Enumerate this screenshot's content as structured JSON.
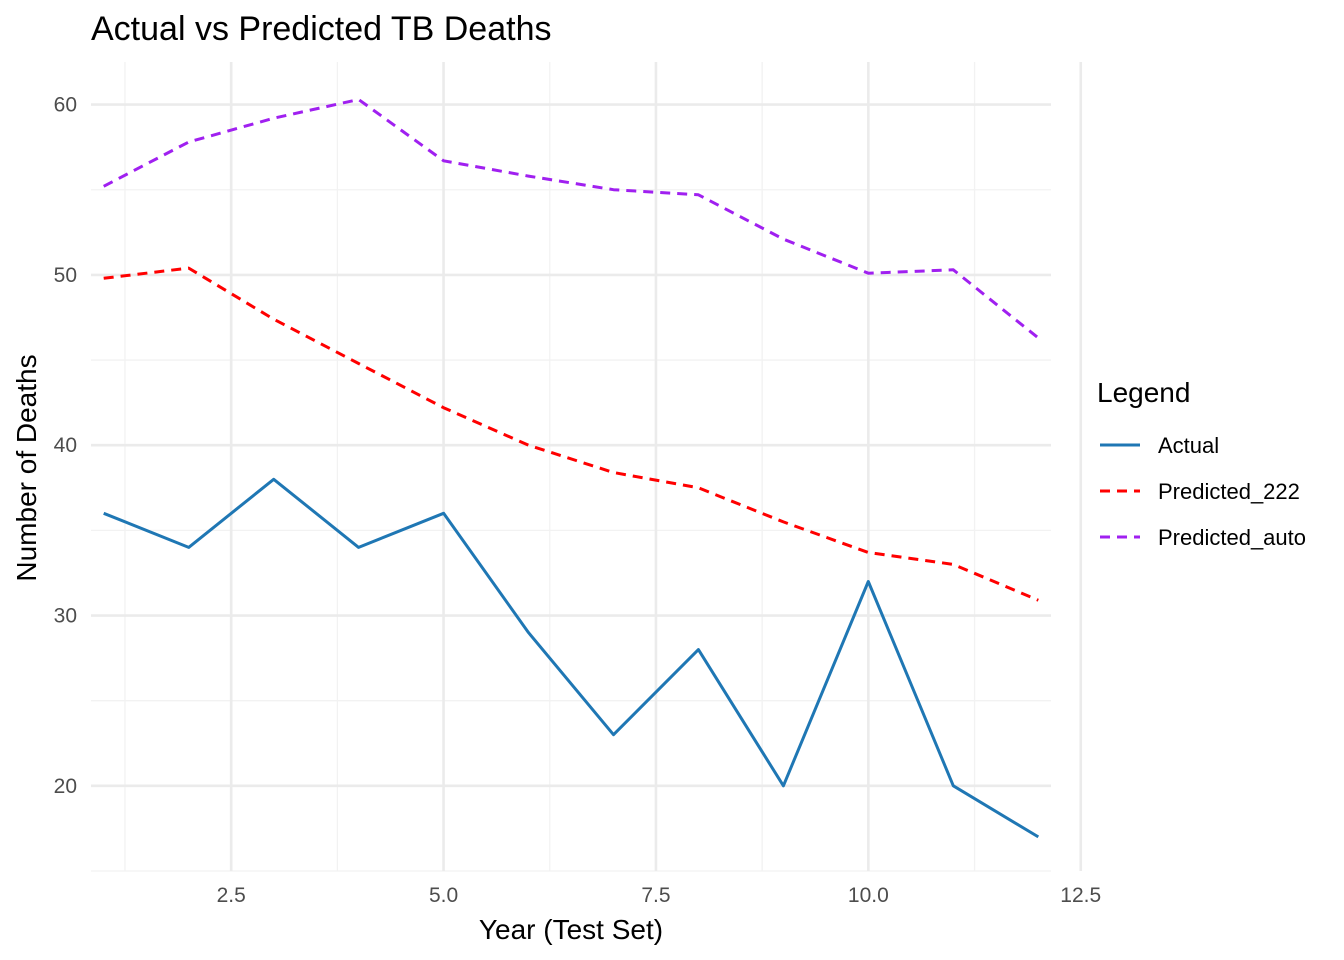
{
  "chart_data": {
    "type": "line",
    "title": "Actual vs Predicted TB Deaths",
    "xlabel": "Year (Test Set)",
    "ylabel": "Number of Deaths",
    "xlim": [
      0.85,
      12.15
    ],
    "ylim": [
      15,
      62.5
    ],
    "x_ticks": [
      2.5,
      5.0,
      7.5,
      10.0,
      12.5
    ],
    "x_tick_labels": [
      "2.5",
      "5.0",
      "7.5",
      "10.0",
      "12.5"
    ],
    "y_ticks": [
      20,
      30,
      40,
      50,
      60
    ],
    "y_tick_labels": [
      "20",
      "30",
      "40",
      "50",
      "60"
    ],
    "grid": true,
    "legend": {
      "title": "Legend",
      "position": "right"
    },
    "x": [
      1,
      2,
      3,
      4,
      5,
      6,
      7,
      8,
      9,
      10,
      11,
      12
    ],
    "series": [
      {
        "name": "Actual",
        "color": "#1f77b4",
        "dash": "solid",
        "values": [
          36,
          34,
          38,
          34,
          36,
          29,
          23,
          28,
          20,
          32,
          20,
          17
        ]
      },
      {
        "name": "Predicted_222",
        "color": "#ff0000",
        "dash": "dashed",
        "values": [
          49.8,
          50.4,
          47.4,
          44.8,
          42.2,
          40.0,
          38.4,
          37.5,
          35.5,
          33.7,
          33.0,
          30.9
        ]
      },
      {
        "name": "Predicted_auto",
        "color": "#a020f0",
        "dash": "dashed",
        "values": [
          55.2,
          57.8,
          59.2,
          60.3,
          56.7,
          55.8,
          55.0,
          54.7,
          52.1,
          50.1,
          50.3,
          46.3
        ]
      }
    ]
  }
}
